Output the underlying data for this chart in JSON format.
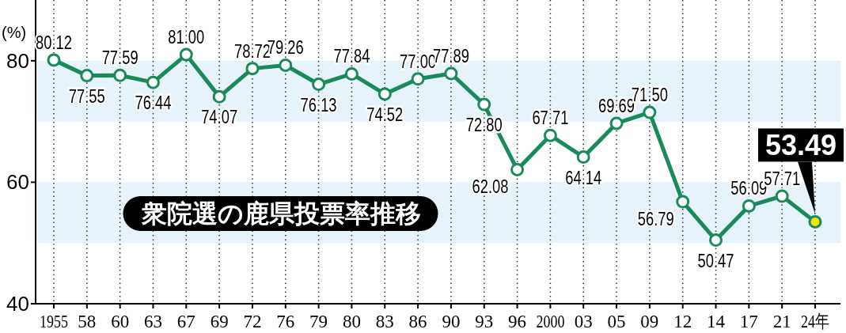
{
  "chart_data": {
    "type": "line",
    "title": "衆院選の鹿県投票率推移",
    "ylabel": "(%)",
    "categories": [
      "1955",
      "58",
      "60",
      "63",
      "67",
      "69",
      "72",
      "76",
      "79",
      "80",
      "83",
      "86",
      "90",
      "93",
      "96",
      "2000",
      "03",
      "05",
      "09",
      "12",
      "14",
      "17",
      "21",
      "24年"
    ],
    "series": [
      {
        "color": "#1b8a5a",
        "colors": [
          "#ffffff",
          "#ffffff",
          "#ffffff",
          "#ffffff",
          "#ffffff",
          "#ffffff",
          "#ffffff",
          "#ffffff",
          "#ffffff",
          "#ffffff",
          "#ffffff",
          "#ffffff",
          "#ffffff",
          "#ffffff",
          "#ffffff",
          "#ffffff",
          "#ffffff",
          "#ffffff",
          "#ffffff",
          "#ffffff",
          "#ffffff",
          "#ffffff",
          "#ffffff",
          "#f2e600"
        ],
        "value_labels": [
          "80.12",
          "77.55",
          "77.59",
          "76.44",
          "81.00",
          "74.07",
          "78.72",
          "79.26",
          "76.13",
          "77.84",
          "74.52",
          "77.00",
          "77.89",
          "72.80",
          "62.08",
          "67.71",
          "64.14",
          "69.69",
          "71.50",
          "56.79",
          "50.47",
          "56.09",
          "57.71",
          "53.49"
        ],
        "values": [
          80.12,
          77.55,
          77.59,
          76.44,
          81.0,
          74.07,
          78.72,
          79.26,
          76.13,
          77.84,
          74.52,
          77.0,
          77.89,
          72.8,
          62.08,
          67.71,
          64.14,
          69.69,
          71.5,
          56.79,
          50.47,
          56.09,
          57.71,
          53.49
        ]
      }
    ],
    "ylim": [
      40,
      90
    ],
    "yticks": [
      40,
      60,
      80
    ],
    "grid": "x",
    "marker": "circle",
    "line_style": "solid",
    "data_labels": true,
    "bands": [
      {
        "axis": "y",
        "from": 70,
        "to": 80,
        "color": "#e6f3fb"
      },
      {
        "axis": "y",
        "from": 50,
        "to": 60,
        "color": "#e6f3fb"
      }
    ]
  }
}
